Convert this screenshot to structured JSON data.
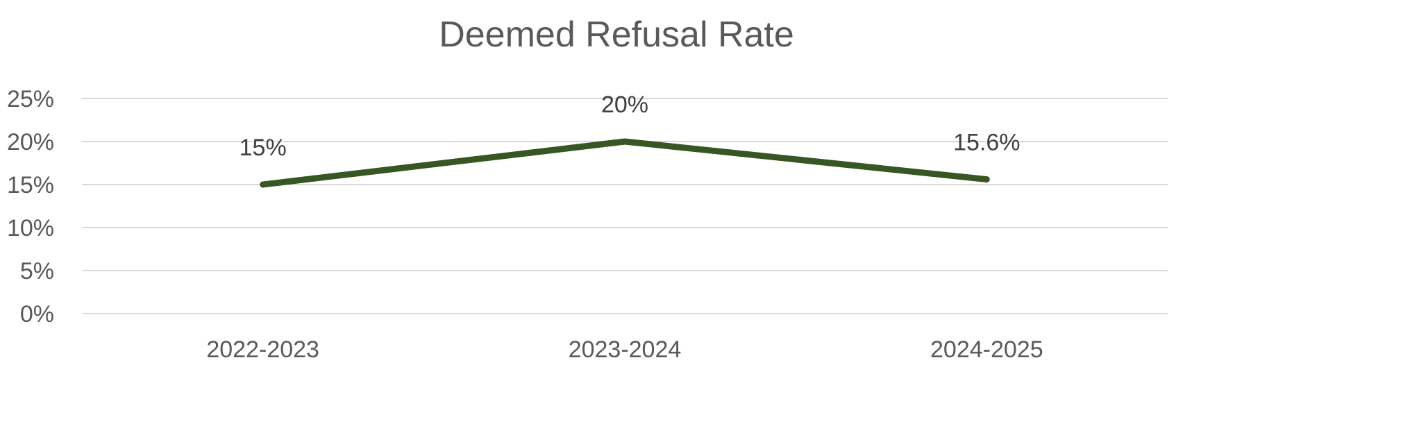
{
  "chart_data": {
    "type": "line",
    "title": "Deemed Refusal Rate",
    "xlabel": "",
    "ylabel": "",
    "categories": [
      "2022-2023",
      "2023-2024",
      "2024-2025"
    ],
    "series": [
      {
        "values": [
          15,
          20,
          15.6
        ],
        "data_labels": [
          "15%",
          "20%",
          "15.6%"
        ],
        "color": "#375623"
      }
    ],
    "ylim": [
      0,
      25
    ],
    "yticks": [
      0,
      5,
      10,
      15,
      20,
      25
    ],
    "ytick_labels": [
      "0%",
      "5%",
      "10%",
      "15%",
      "20%",
      "25%"
    ],
    "grid": true,
    "legend": "none",
    "colors": {
      "line": "#375623",
      "grid": "#d9d9d9",
      "text": "#595959",
      "title": "#595959"
    }
  }
}
